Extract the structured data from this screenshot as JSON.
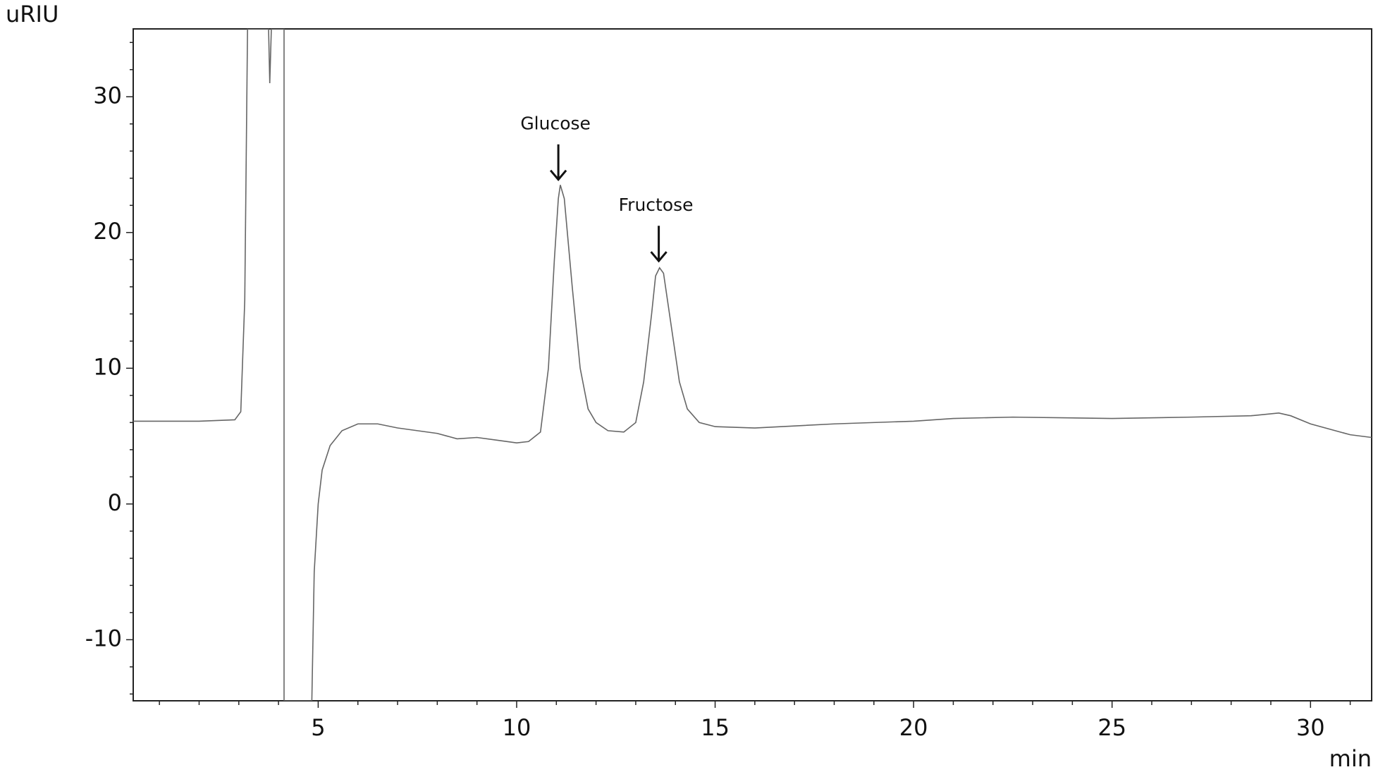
{
  "chart_data": {
    "type": "line",
    "xlabel": "min",
    "ylabel": "uRIU",
    "xlim": [
      0.34,
      31.54
    ],
    "ylim": [
      -14.5,
      35
    ],
    "xticks": [
      5,
      10,
      15,
      20,
      25,
      30
    ],
    "yticks": [
      -10,
      0,
      10,
      20,
      30
    ],
    "xminorticks": [
      1,
      2,
      3,
      4,
      6,
      7,
      8,
      9,
      11,
      12,
      13,
      14,
      16,
      17,
      18,
      19,
      21,
      22,
      23,
      24,
      26,
      27,
      28,
      29,
      31
    ],
    "yminorticks": [
      -14,
      -12,
      -8,
      -6,
      -4,
      -2,
      2,
      4,
      6,
      8,
      12,
      14,
      16,
      18,
      22,
      24,
      26,
      28,
      32,
      34
    ],
    "series": [
      {
        "color": "#666666",
        "x": [
          0.34,
          2.0,
          2.9,
          3.05,
          3.15,
          3.22,
          3.75,
          3.78,
          3.82,
          4.14,
          4.14,
          4.84,
          4.9,
          5.0,
          5.1,
          5.3,
          5.6,
          6.0,
          6.5,
          7,
          8,
          8.5,
          9,
          9.5,
          10,
          10.3,
          10.6,
          10.8,
          10.95,
          11.05,
          11.1,
          11.2,
          11.4,
          11.6,
          11.8,
          12,
          12.3,
          12.7,
          13,
          13.2,
          13.4,
          13.5,
          13.6,
          13.7,
          13.9,
          14.1,
          14.3,
          14.6,
          15,
          16,
          18,
          20,
          21,
          22.5,
          25,
          27,
          28.5,
          29.2,
          29.5,
          30,
          31,
          31.54
        ],
        "values": [
          6.1,
          6.1,
          6.2,
          6.8,
          15,
          35,
          35,
          31,
          35,
          35,
          -14.5,
          -14.5,
          -5,
          0,
          2.5,
          4.3,
          5.4,
          5.9,
          5.9,
          5.6,
          5.2,
          4.8,
          4.9,
          4.7,
          4.5,
          4.6,
          5.3,
          10,
          18,
          22.5,
          23.5,
          22.5,
          16,
          10,
          7,
          6,
          5.4,
          5.3,
          6,
          9,
          14,
          16.8,
          17.4,
          17,
          13,
          9,
          7,
          6,
          5.7,
          5.6,
          5.9,
          6.1,
          6.3,
          6.4,
          6.3,
          6.4,
          6.5,
          6.7,
          6.5,
          5.9,
          5.1,
          4.9
        ]
      }
    ],
    "annotations": [
      {
        "text": "Glucose",
        "x": 11.05,
        "y": 23.9
      },
      {
        "text": "Fructose",
        "x": 13.58,
        "y": 17.9
      }
    ]
  }
}
